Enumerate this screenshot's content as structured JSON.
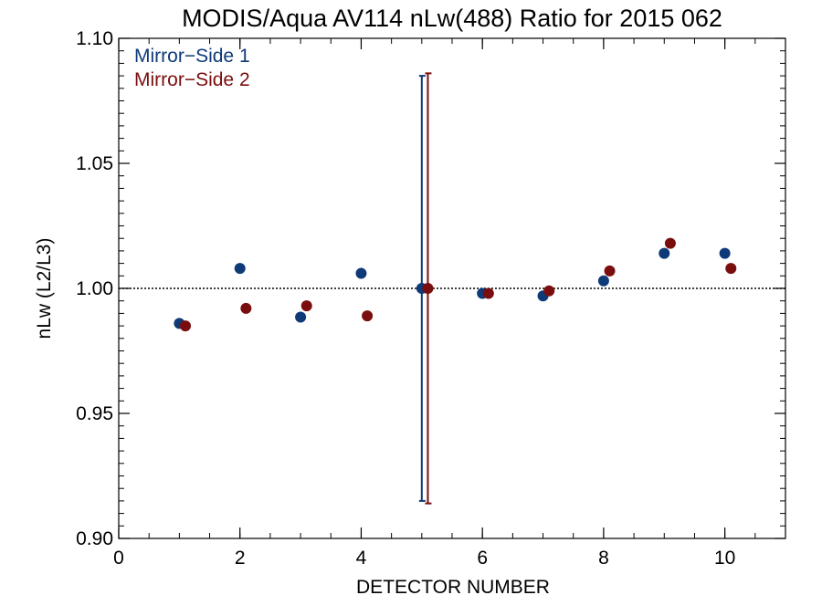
{
  "chart_data": {
    "type": "scatter",
    "title": "MODIS/Aqua AV114 nLw(488) Ratio for 2015 062",
    "xlabel": "DETECTOR NUMBER",
    "ylabel": "nLw (L2/L3)",
    "xlim": [
      0,
      11
    ],
    "ylim": [
      0.9,
      1.1
    ],
    "x_ticks": [
      0,
      2,
      4,
      6,
      8,
      10
    ],
    "x_tick_labels": [
      "0",
      "2",
      "4",
      "6",
      "8",
      "10"
    ],
    "y_ticks": [
      0.9,
      0.95,
      1.0,
      1.05,
      1.1
    ],
    "y_tick_labels": [
      "0.90",
      "0.95",
      "1.00",
      "1.05",
      "1.10"
    ],
    "reference_line": {
      "y": 1.0,
      "style": "dotted",
      "color": "#000000"
    },
    "legend_placement": "top-left",
    "series": [
      {
        "name": "Mirror−Side 1",
        "color": "#0f3a78",
        "x": [
          1,
          2,
          3,
          4,
          5,
          6,
          7,
          8,
          9,
          10
        ],
        "y": [
          0.986,
          1.008,
          0.9885,
          1.006,
          1.0,
          0.998,
          0.997,
          1.003,
          1.014,
          1.014
        ],
        "error_bars": [
          {
            "x": 5,
            "low": 0.915,
            "high": 1.085
          }
        ]
      },
      {
        "name": "Mirror−Side 2",
        "color": "#7a0e0e",
        "x": [
          1.1,
          2.1,
          3.1,
          4.1,
          5.1,
          6.1,
          7.1,
          8.1,
          9.1,
          10.1
        ],
        "y": [
          0.985,
          0.992,
          0.993,
          0.989,
          1.0,
          0.998,
          0.999,
          1.007,
          1.018,
          1.008
        ],
        "error_bars": [
          {
            "x": 5.1,
            "low": 0.914,
            "high": 1.086
          }
        ]
      }
    ]
  }
}
